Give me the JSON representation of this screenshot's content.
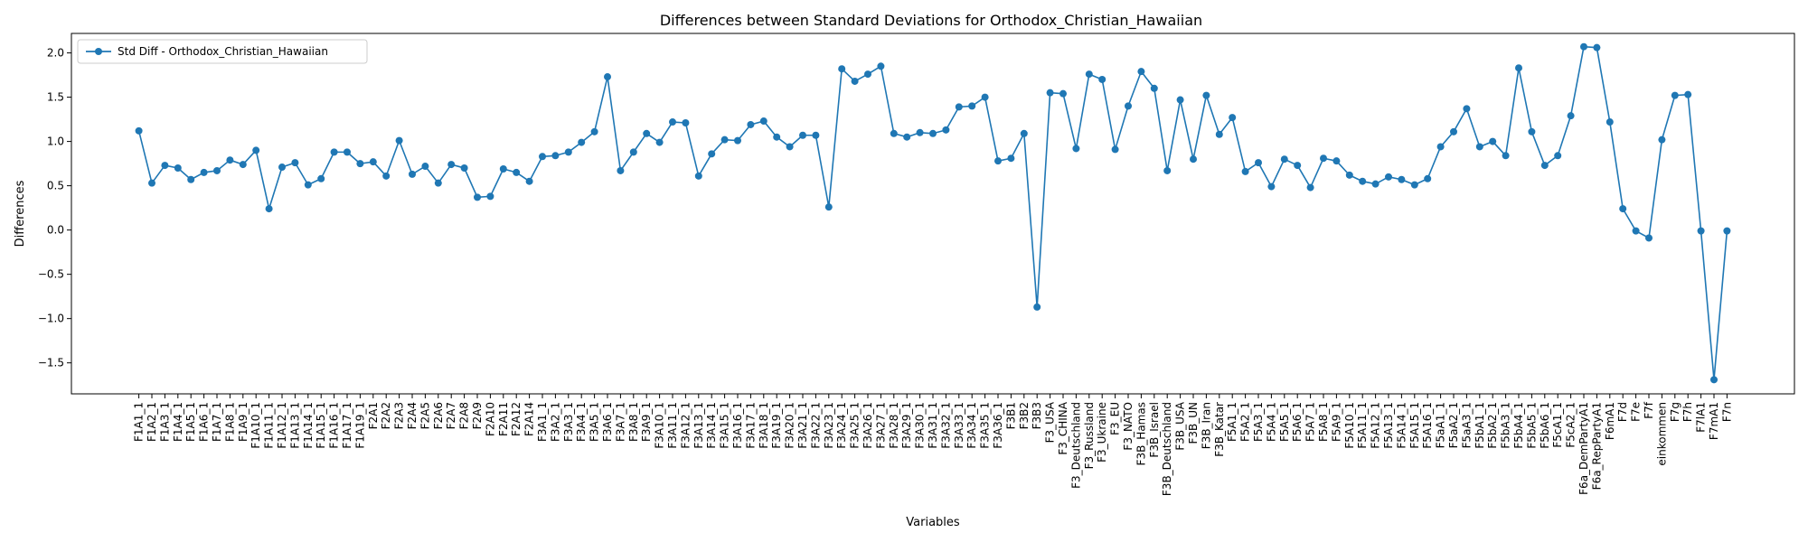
{
  "chart_data": {
    "type": "line",
    "title": "Differences between Standard Deviations for Orthodox_Christian_Hawaiian",
    "xlabel": "Variables",
    "ylabel": "Differences",
    "ylim": [
      -1.85,
      2.22
    ],
    "yticks": [
      -1.5,
      -1.0,
      -0.5,
      0.0,
      0.5,
      1.0,
      1.5,
      2.0
    ],
    "ytick_labels": [
      "−1.5",
      "−1.0",
      "−0.5",
      "0.0",
      "0.5",
      "1.0",
      "1.5",
      "2.0"
    ],
    "grid": false,
    "legend_position": "top-left",
    "series_color": "#1f77b4",
    "categories": [
      "F1A1_1",
      "F1A2_1",
      "F1A3_1",
      "F1A4_1",
      "F1A5_1",
      "F1A6_1",
      "F1A7_1",
      "F1A8_1",
      "F1A9_1",
      "F1A10_1",
      "F1A11_1",
      "F1A12_1",
      "F1A13_1",
      "F1A14_1",
      "F1A15_1",
      "F1A16_1",
      "F1A17_1",
      "F1A19_1",
      "F2A1",
      "F2A2",
      "F2A3",
      "F2A4",
      "F2A5",
      "F2A6",
      "F2A7",
      "F2A8",
      "F2A9",
      "F2A10",
      "F2A11",
      "F2A12",
      "F2A14",
      "F3A1_1",
      "F3A2_1",
      "F3A3_1",
      "F3A4_1",
      "F3A5_1",
      "F3A6_1",
      "F3A7_1",
      "F3A8_1",
      "F3A9_1",
      "F3A10_1",
      "F3A11_1",
      "F3A12_1",
      "F3A13_1",
      "F3A14_1",
      "F3A15_1",
      "F3A16_1",
      "F3A17_1",
      "F3A18_1",
      "F3A19_1",
      "F3A20_1",
      "F3A21_1",
      "F3A22_1",
      "F3A23_1",
      "F3A24_1",
      "F3A25_1",
      "F3A26_1",
      "F3A27_1",
      "F3A28_1",
      "F3A29_1",
      "F3A30_1",
      "F3A31_1",
      "F3A32_1",
      "F3A33_1",
      "F3A34_1",
      "F3A35_1",
      "F3A36_1",
      "F3B1",
      "F3B2",
      "F3B3",
      "F3_USA",
      "F3_CHINA",
      "F3_Deutschland",
      "F3_Russland",
      "F3_Ukraine",
      "F3_EU",
      "F3_NATO",
      "F3B_Hamas",
      "F3B_Israel",
      "F3B_Deutschland",
      "F3B_USA",
      "F3B_UN",
      "F3B_Iran",
      "F3B_Katar",
      "F5A1_1",
      "F5A2_1",
      "F5A3_1",
      "F5A4_1",
      "F5A5_1",
      "F5A6_1",
      "F5A7_1",
      "F5A8_1",
      "F5A9_1",
      "F5A10_1",
      "F5A11_1",
      "F5A12_1",
      "F5A13_1",
      "F5A14_1",
      "F5A15_1",
      "F5A16_1",
      "F5aA1_1",
      "F5aA2_1",
      "F5aA3_1",
      "F5bA1_1",
      "F5bA2_1",
      "F5bA3_1",
      "F5bA4_1",
      "F5bA5_1",
      "F5bA6_1",
      "F5cA1_1",
      "F5cA2_1",
      "F6a_DemPartyA1",
      "F6a_RepPartyA1",
      "F6mA1",
      "F7d",
      "F7e",
      "F7f",
      "einkommen",
      "F7g",
      "F7h",
      "F7lA1",
      "F7mA1",
      "F7n"
    ],
    "series": [
      {
        "name": "Std Diff - Orthodox_Christian_Hawaiian",
        "values": [
          1.12,
          0.53,
          0.73,
          0.7,
          0.57,
          0.65,
          0.67,
          0.79,
          0.74,
          0.9,
          0.24,
          0.71,
          0.76,
          0.51,
          0.58,
          0.88,
          0.88,
          0.75,
          0.77,
          0.61,
          1.01,
          0.63,
          0.72,
          0.53,
          0.74,
          0.7,
          0.37,
          0.38,
          0.69,
          0.65,
          0.55,
          0.83,
          0.84,
          0.88,
          0.99,
          1.11,
          1.73,
          0.67,
          0.88,
          1.09,
          0.99,
          1.22,
          1.21,
          0.61,
          0.86,
          1.02,
          1.01,
          1.19,
          1.23,
          1.05,
          0.94,
          1.07,
          1.07,
          0.26,
          1.82,
          1.68,
          1.76,
          1.85,
          1.09,
          1.05,
          1.1,
          1.09,
          1.13,
          1.39,
          1.4,
          1.5,
          0.78,
          0.81,
          1.09,
          -0.87,
          1.55,
          1.54,
          0.92,
          1.76,
          1.7,
          0.91,
          1.4,
          1.79,
          1.6,
          0.67,
          1.47,
          0.8,
          1.52,
          1.08,
          1.27,
          0.66,
          0.76,
          0.49,
          0.8,
          0.73,
          0.48,
          0.81,
          0.78,
          0.62,
          0.55,
          0.52,
          0.6,
          0.57,
          0.51,
          0.58,
          0.94,
          1.11,
          1.37,
          0.94,
          1.0,
          0.84,
          1.83,
          1.11,
          0.73,
          0.84,
          1.29,
          2.07,
          2.06,
          1.22,
          0.24,
          -0.01,
          -0.09,
          1.02,
          1.52,
          1.53,
          -0.01,
          -1.69,
          -0.01
        ]
      }
    ]
  }
}
